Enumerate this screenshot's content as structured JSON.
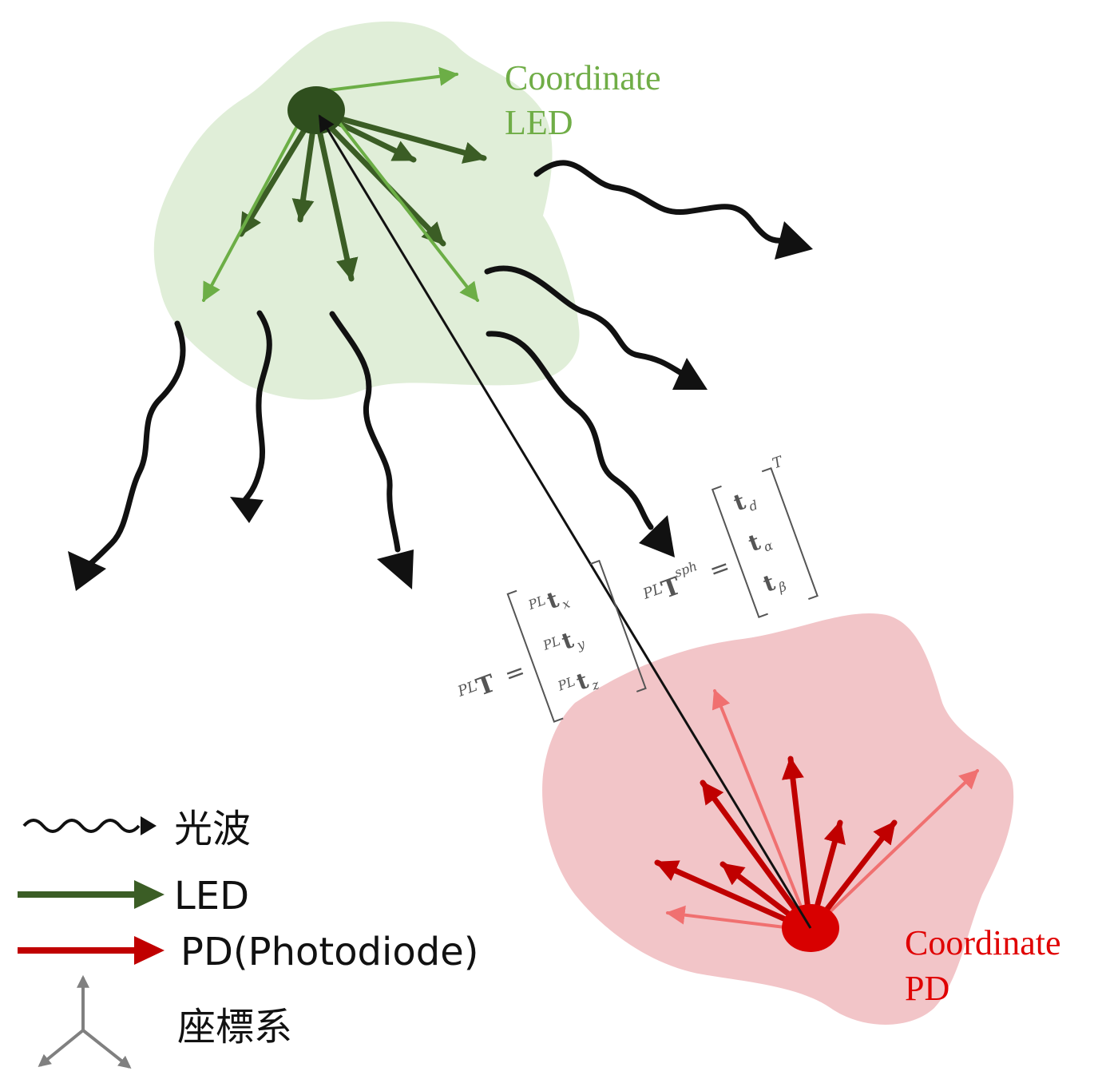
{
  "colors": {
    "led_region": "#e0eed8",
    "pd_region": "#f2c5c8",
    "led_arrow_dark": "#3b5d25",
    "led_arrow_light": "#6cae46",
    "led_dot": "#2f4f1e",
    "pd_arrow_dark": "#c00000",
    "pd_arrow_light": "#f07070",
    "pd_dot": "#d80000",
    "wave": "#111111",
    "axes": "#808080",
    "led_label": "#70ad47",
    "pd_label": "#e00000",
    "math": "#555555"
  },
  "labels": {
    "led_coordinate_line1": "Coordinate",
    "led_coordinate_line2": "LED",
    "pd_coordinate_line1": "Coordinate",
    "pd_coordinate_line2": "PD"
  },
  "equations": {
    "cartesian": {
      "lhs_superscript": "PL",
      "lhs_symbol": "T",
      "equals": "=",
      "rows": [
        {
          "superscript": "PL",
          "symbol": "t",
          "subscript": "x"
        },
        {
          "superscript": "PL",
          "symbol": "t",
          "subscript": "y"
        },
        {
          "superscript": "PL",
          "symbol": "t",
          "subscript": "z"
        }
      ]
    },
    "spherical": {
      "lhs_superscript": "PL",
      "lhs_symbol": "T",
      "lhs_sup_right": "sph",
      "equals": "=",
      "rows": [
        {
          "symbol": "t",
          "subscript": "d"
        },
        {
          "symbol": "t",
          "subscript": "α"
        },
        {
          "symbol": "t",
          "subscript": "β"
        }
      ],
      "transpose": "T"
    }
  },
  "legend": [
    {
      "icon": "wave-arrow-icon",
      "label": "光波"
    },
    {
      "icon": "led-arrow-icon",
      "label": "LED"
    },
    {
      "icon": "pd-arrow-icon",
      "label": "PD(Photodiode)"
    },
    {
      "icon": "coordinate-axes-icon",
      "label": "座標系"
    }
  ]
}
